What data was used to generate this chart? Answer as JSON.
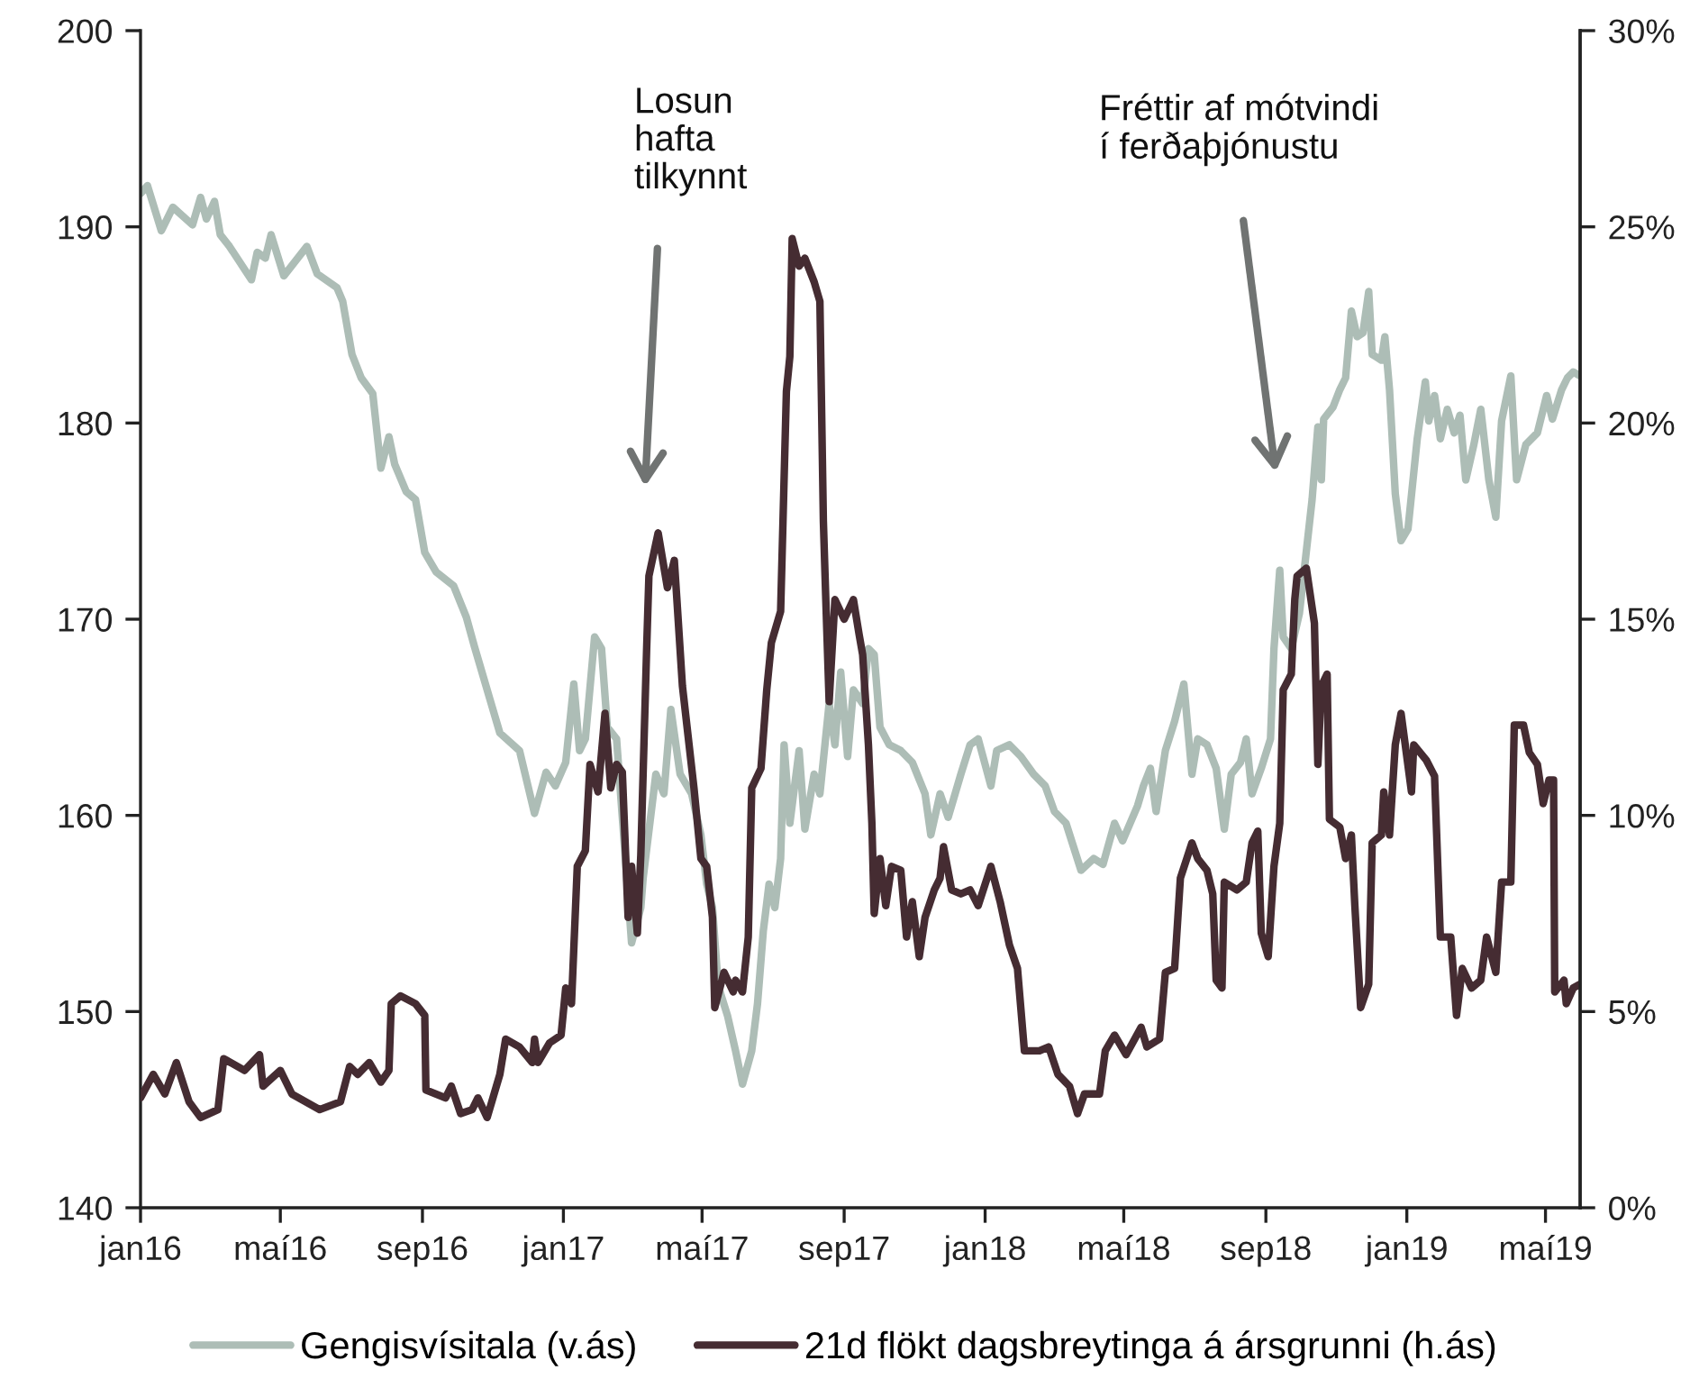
{
  "chart_data": {
    "type": "line",
    "xlim": [
      "2016-01-01",
      "2019-05-31"
    ],
    "xticks": [
      {
        "value": "2016-01-01",
        "label": "jan16"
      },
      {
        "value": "2016-05-01",
        "label": "maí16"
      },
      {
        "value": "2016-09-01",
        "label": "sep16"
      },
      {
        "value": "2017-01-01",
        "label": "jan17"
      },
      {
        "value": "2017-05-01",
        "label": "maí17"
      },
      {
        "value": "2017-09-01",
        "label": "sep17"
      },
      {
        "value": "2018-01-01",
        "label": "jan18"
      },
      {
        "value": "2018-05-01",
        "label": "maí18"
      },
      {
        "value": "2018-09-01",
        "label": "sep18"
      },
      {
        "value": "2019-01-01",
        "label": "jan19"
      },
      {
        "value": "2019-05-01",
        "label": "maí19"
      }
    ],
    "ylim": [
      140,
      200
    ],
    "yticks": [
      140,
      150,
      160,
      170,
      180,
      190,
      200
    ],
    "y2lim": [
      0,
      30
    ],
    "y2ticks": [
      {
        "value": 0,
        "label": "0%"
      },
      {
        "value": 5,
        "label": "5%"
      },
      {
        "value": 10,
        "label": "10%"
      },
      {
        "value": 15,
        "label": "15%"
      },
      {
        "value": 20,
        "label": "20%"
      },
      {
        "value": 25,
        "label": "25%"
      },
      {
        "value": 30,
        "label": "30%"
      }
    ],
    "legend": "bottom",
    "annotations": [
      "Losun\nhafta\ntilkynnt",
      "Fréttir af mótvindi\ní ferðaþjónustu"
    ],
    "series": [
      {
        "name": "Gengisvísitala (v.ás)",
        "color": "#adbdb6",
        "x": [
          "2016-01-01",
          "2016-01-07",
          "2016-01-19",
          "2016-01-29",
          "2016-02-15",
          "2016-02-22",
          "2016-02-27",
          "2016-03-05",
          "2016-03-10",
          "2016-03-18",
          "2016-04-06",
          "2016-04-11",
          "2016-04-18",
          "2016-04-23",
          "2016-05-04",
          "2016-05-24",
          "2016-06-02",
          "2016-06-19",
          "2016-06-24",
          "2016-07-02",
          "2016-07-10",
          "2016-07-20",
          "2016-07-27",
          "2016-08-03",
          "2016-08-08",
          "2016-08-18",
          "2016-08-26",
          "2016-09-03",
          "2016-09-13",
          "2016-09-28",
          "2016-10-09",
          "2016-10-16",
          "2016-10-29",
          "2016-11-07",
          "2016-11-24",
          "2016-12-07",
          "2016-12-17",
          "2016-12-25",
          "2017-01-03",
          "2017-01-10",
          "2017-01-15",
          "2017-01-20",
          "2017-01-28",
          "2017-02-03",
          "2017-02-08",
          "2017-02-16",
          "2017-02-21",
          "2017-03-01",
          "2017-03-09",
          "2017-03-11",
          "2017-03-22",
          "2017-03-29",
          "2017-04-04",
          "2017-04-12",
          "2017-04-22",
          "2017-04-30",
          "2017-05-05",
          "2017-05-10",
          "2017-05-15",
          "2017-05-23",
          "2017-05-30",
          "2017-06-05",
          "2017-06-13",
          "2017-06-18",
          "2017-06-23",
          "2017-06-28",
          "2017-07-03",
          "2017-07-08",
          "2017-07-11",
          "2017-07-16",
          "2017-07-24",
          "2017-07-29",
          "2017-08-06",
          "2017-08-11",
          "2017-08-19",
          "2017-08-24",
          "2017-08-29",
          "2017-09-04",
          "2017-09-09",
          "2017-09-17",
          "2017-09-22",
          "2017-09-27",
          "2017-10-02",
          "2017-10-10",
          "2017-10-20",
          "2017-10-30",
          "2017-11-10",
          "2017-11-15",
          "2017-11-23",
          "2017-11-30",
          "2017-12-11",
          "2017-12-19",
          "2017-12-26",
          "2018-01-06",
          "2018-01-11",
          "2018-01-22",
          "2018-02-01",
          "2018-02-12",
          "2018-02-22",
          "2018-03-02",
          "2018-03-12",
          "2018-03-25",
          "2018-04-05",
          "2018-04-13",
          "2018-04-23",
          "2018-04-30",
          "2018-05-13",
          "2018-05-18",
          "2018-05-24",
          "2018-05-29",
          "2018-06-06",
          "2018-06-14",
          "2018-06-22",
          "2018-06-29",
          "2018-07-04",
          "2018-07-12",
          "2018-07-20",
          "2018-07-27",
          "2018-08-02",
          "2018-08-10",
          "2018-08-15",
          "2018-08-20",
          "2018-08-28",
          "2018-09-05",
          "2018-09-08",
          "2018-09-13",
          "2018-09-16",
          "2018-09-23",
          "2018-09-30",
          "2018-10-11",
          "2018-10-16",
          "2018-10-19",
          "2018-10-21",
          "2018-10-29",
          "2018-11-04",
          "2018-11-09",
          "2018-11-14",
          "2018-11-19",
          "2018-11-24",
          "2018-11-29",
          "2018-12-02",
          "2018-12-10",
          "2018-12-13",
          "2018-12-17",
          "2018-12-22",
          "2018-12-27",
          "2019-01-02",
          "2019-01-10",
          "2019-01-17",
          "2019-01-20",
          "2019-01-25",
          "2019-01-30",
          "2019-02-05",
          "2019-02-11",
          "2019-02-16",
          "2019-02-21",
          "2019-02-28",
          "2019-03-06",
          "2019-03-13",
          "2019-03-19",
          "2019-03-24",
          "2019-04-01",
          "2019-04-06",
          "2019-04-14",
          "2019-04-24",
          "2019-05-02",
          "2019-05-07",
          "2019-05-15",
          "2019-05-20",
          "2019-05-25",
          "2019-05-31"
        ],
        "values": [
          191.7,
          192.1,
          189.8,
          191.0,
          190.1,
          191.5,
          190.4,
          191.3,
          189.6,
          189.0,
          187.3,
          188.7,
          188.4,
          189.6,
          187.5,
          189.0,
          187.6,
          186.9,
          186.2,
          183.5,
          182.3,
          181.5,
          177.7,
          179.3,
          177.9,
          176.5,
          176.1,
          173.4,
          172.4,
          171.7,
          170.1,
          168.6,
          166.0,
          164.2,
          163.3,
          160.1,
          162.2,
          161.5,
          162.7,
          166.7,
          163.3,
          163.9,
          169.1,
          168.5,
          164.5,
          163.9,
          159.9,
          153.5,
          155.3,
          156.8,
          162.1,
          161.1,
          165.4,
          162.1,
          161.1,
          159.0,
          156.5,
          155.3,
          151.3,
          149.8,
          148.0,
          146.3,
          148.0,
          150.4,
          154.1,
          156.5,
          155.3,
          157.8,
          163.6,
          159.6,
          163.3,
          159.3,
          162.1,
          161.1,
          165.7,
          163.6,
          167.3,
          163.0,
          166.4,
          165.7,
          168.5,
          168.2,
          164.5,
          163.6,
          163.3,
          162.7,
          161.1,
          159.0,
          161.1,
          159.9,
          162.1,
          163.6,
          163.9,
          161.5,
          163.3,
          163.6,
          163.0,
          162.1,
          161.5,
          160.2,
          159.6,
          157.2,
          157.8,
          157.5,
          159.6,
          158.7,
          160.5,
          161.5,
          162.4,
          160.2,
          163.3,
          164.8,
          166.7,
          162.1,
          163.9,
          163.6,
          162.4,
          159.3,
          162.1,
          162.7,
          163.9,
          161.1,
          162.4,
          163.9,
          168.5,
          172.5,
          169.1,
          168.5,
          170.3,
          176.1,
          179.8,
          177.1,
          180.2,
          180.8,
          181.7,
          182.3,
          185.7,
          184.4,
          184.6,
          186.7,
          183.5,
          183.2,
          184.4,
          181.7,
          176.4,
          174.0,
          174.6,
          179.2,
          182.1,
          180.1,
          181.4,
          179.2,
          180.7,
          179.5,
          180.4,
          177.1,
          178.9,
          180.7,
          177.1,
          175.2,
          180.1,
          182.4,
          177.1,
          178.9,
          179.5,
          181.4,
          180.2,
          181.7,
          182.3,
          182.6,
          182.4
        ]
      },
      {
        "name": "21d flökt dagsbreytinga á ársgrunni (h.ás)",
        "color": "#452c32",
        "axis": "y2",
        "x": [
          "2016-01-01",
          "2016-01-12",
          "2016-01-22",
          "2016-02-01",
          "2016-02-12",
          "2016-02-22",
          "2016-03-08",
          "2016-03-13",
          "2016-03-31",
          "2016-04-13",
          "2016-04-16",
          "2016-05-01",
          "2016-05-11",
          "2016-06-04",
          "2016-06-22",
          "2016-06-30",
          "2016-07-07",
          "2016-07-17",
          "2016-07-27",
          "2016-08-03",
          "2016-08-05",
          "2016-08-13",
          "2016-08-26",
          "2016-09-03",
          "2016-09-04",
          "2016-09-21",
          "2016-09-26",
          "2016-10-04",
          "2016-10-14",
          "2016-10-19",
          "2016-10-27",
          "2016-11-07",
          "2016-11-12",
          "2016-11-24",
          "2016-12-05",
          "2016-12-07",
          "2016-12-10",
          "2016-12-20",
          "2016-12-30",
          "2017-01-03",
          "2017-01-08",
          "2017-01-13",
          "2017-01-20",
          "2017-01-24",
          "2017-01-31",
          "2017-02-06",
          "2017-02-11",
          "2017-02-16",
          "2017-02-21",
          "2017-02-26",
          "2017-03-01",
          "2017-03-06",
          "2017-03-09",
          "2017-03-14",
          "2017-03-16",
          "2017-03-24",
          "2017-04-01",
          "2017-04-07",
          "2017-04-09",
          "2017-04-14",
          "2017-04-24",
          "2017-04-30",
          "2017-05-05",
          "2017-05-10",
          "2017-05-12",
          "2017-05-20",
          "2017-05-28",
          "2017-05-30",
          "2017-06-05",
          "2017-06-10",
          "2017-06-13",
          "2017-06-21",
          "2017-06-26",
          "2017-06-30",
          "2017-07-08",
          "2017-07-13",
          "2017-07-16",
          "2017-07-18",
          "2017-07-24",
          "2017-07-29",
          "2017-08-06",
          "2017-08-11",
          "2017-08-14",
          "2017-08-16",
          "2017-08-19",
          "2017-08-24",
          "2017-09-01",
          "2017-09-09",
          "2017-09-14",
          "2017-09-17",
          "2017-09-22",
          "2017-09-25",
          "2017-09-27",
          "2017-10-02",
          "2017-10-07",
          "2017-10-12",
          "2017-10-20",
          "2017-10-25",
          "2017-10-30",
          "2017-11-05",
          "2017-11-10",
          "2017-11-18",
          "2017-11-23",
          "2017-11-26",
          "2017-12-03",
          "2017-12-11",
          "2017-12-19",
          "2017-12-26",
          "2018-01-06",
          "2018-01-14",
          "2018-01-22",
          "2018-01-29",
          "2018-02-04",
          "2018-02-17",
          "2018-02-25",
          "2018-03-05",
          "2018-03-15",
          "2018-03-22",
          "2018-03-28",
          "2018-04-10",
          "2018-04-15",
          "2018-04-23",
          "2018-05-03",
          "2018-05-16",
          "2018-05-21",
          "2018-06-01",
          "2018-06-06",
          "2018-06-14",
          "2018-06-19",
          "2018-06-29",
          "2018-07-04",
          "2018-07-12",
          "2018-07-17",
          "2018-07-20",
          "2018-07-25",
          "2018-07-27",
          "2018-08-07",
          "2018-08-15",
          "2018-08-20",
          "2018-08-25",
          "2018-08-28",
          "2018-09-03",
          "2018-09-08",
          "2018-09-13",
          "2018-09-16",
          "2018-09-23",
          "2018-09-26",
          "2018-09-28",
          "2018-10-06",
          "2018-10-13",
          "2018-10-16",
          "2018-10-19",
          "2018-10-24",
          "2018-10-26",
          "2018-11-04",
          "2018-11-09",
          "2018-11-14",
          "2018-11-17",
          "2018-11-22",
          "2018-11-29",
          "2018-12-02",
          "2018-12-10",
          "2018-12-12",
          "2018-12-17",
          "2018-12-22",
          "2018-12-27",
          "2019-01-05",
          "2019-01-07",
          "2019-01-18",
          "2019-01-25",
          "2019-01-30",
          "2019-02-08",
          "2019-02-13",
          "2019-02-18",
          "2019-02-26",
          "2019-03-06",
          "2019-03-11",
          "2019-03-19",
          "2019-03-24",
          "2019-04-01",
          "2019-04-04",
          "2019-04-12",
          "2019-04-17",
          "2019-04-24",
          "2019-04-29",
          "2019-05-04",
          "2019-05-08",
          "2019-05-09",
          "2019-05-17",
          "2019-05-19",
          "2019-05-25",
          "2019-05-31"
        ],
        "values": [
          2.8,
          3.4,
          2.9,
          3.7,
          2.7,
          2.3,
          2.5,
          3.8,
          3.5,
          3.9,
          3.1,
          3.5,
          2.9,
          2.5,
          2.7,
          3.6,
          3.4,
          3.7,
          3.2,
          3.5,
          5.2,
          5.4,
          5.2,
          4.9,
          3.0,
          2.8,
          3.1,
          2.4,
          2.5,
          2.8,
          2.3,
          3.4,
          4.3,
          4.1,
          3.7,
          4.3,
          3.7,
          4.2,
          4.4,
          5.6,
          5.2,
          8.7,
          9.1,
          11.3,
          10.6,
          12.6,
          10.7,
          11.3,
          11.1,
          7.4,
          8.7,
          7.0,
          9.0,
          14.2,
          16.1,
          17.2,
          15.8,
          16.5,
          15.6,
          13.3,
          10.7,
          8.9,
          8.7,
          7.4,
          5.1,
          6.0,
          5.5,
          5.8,
          5.5,
          6.9,
          10.7,
          11.2,
          13.2,
          14.4,
          15.2,
          20.8,
          21.7,
          24.7,
          24.0,
          24.2,
          23.6,
          23.1,
          17.5,
          15.6,
          12.9,
          15.5,
          15.0,
          15.5,
          14.6,
          14.1,
          11.8,
          9.8,
          7.5,
          8.9,
          7.7,
          8.7,
          8.6,
          6.9,
          7.8,
          6.4,
          7.4,
          8.1,
          8.4,
          9.2,
          8.1,
          8.0,
          8.1,
          7.7,
          8.7,
          7.8,
          6.7,
          6.1,
          4.0,
          4.0,
          4.1,
          3.4,
          3.1,
          2.4,
          2.9,
          2.9,
          4.0,
          4.4,
          3.9,
          4.6,
          4.1,
          4.3,
          6.0,
          6.1,
          8.4,
          9.3,
          8.9,
          8.6,
          8.0,
          5.8,
          5.6,
          8.3,
          8.1,
          8.3,
          9.3,
          9.6,
          7.0,
          6.4,
          8.7,
          9.8,
          13.2,
          13.6,
          15.5,
          16.1,
          16.3,
          14.9,
          11.3,
          13.3,
          13.6,
          9.9,
          9.7,
          8.9,
          9.5,
          7.7,
          5.1,
          5.7,
          9.3,
          9.5,
          10.6,
          9.5,
          11.8,
          12.6,
          10.6,
          11.8,
          11.4,
          11.0,
          6.9,
          6.9,
          4.9,
          6.1,
          5.6,
          5.8,
          6.9,
          6.0,
          8.3,
          8.3,
          12.3,
          12.3,
          11.6,
          11.3,
          10.3,
          10.9,
          10.9,
          5.5,
          5.8,
          5.2,
          5.6,
          5.7
        ]
      }
    ]
  }
}
